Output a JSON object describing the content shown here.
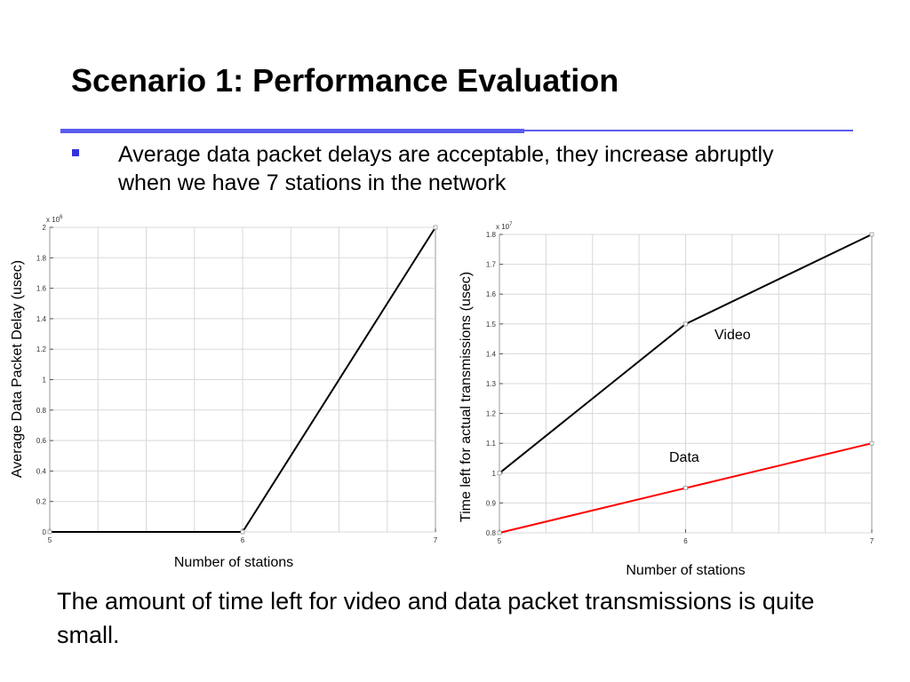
{
  "slide": {
    "title": "Scenario 1: Performance Evaluation",
    "bullet": "Average data packet delays are acceptable, they increase abruptly when we have 7 stations in the network",
    "footer": "The amount of time left for video and data packet transmissions is quite small.",
    "accent_color": "#5c5cf0",
    "bullet_color": "#3333dd"
  },
  "chart_data": [
    {
      "type": "line",
      "title": "",
      "xlabel": "Number of stations",
      "ylabel": "Average Data Packet Delay (usec)",
      "y_multiplier": "x 10",
      "y_exponent": "6",
      "xlim": [
        5,
        7
      ],
      "ylim": [
        0,
        2
      ],
      "xticks": [
        5,
        6,
        7
      ],
      "xtick_labels": [
        "5",
        "6",
        "7"
      ],
      "yticks": [
        0,
        0.2,
        0.4,
        0.6,
        0.8,
        1,
        1.2,
        1.4,
        1.6,
        1.8,
        2
      ],
      "ytick_labels": [
        "0",
        "0.2",
        "0.4",
        "0.6",
        "0.8",
        "1",
        "1.2",
        "1.4",
        "1.6",
        "1.8",
        "2"
      ],
      "grid": true,
      "series": [
        {
          "x": [
            5,
            6,
            7
          ],
          "values": [
            0,
            0,
            2
          ],
          "color": "#000000"
        }
      ]
    },
    {
      "type": "line",
      "title": "",
      "xlabel": "Number of stations",
      "ylabel": "Time left for actual transmissions (usec)",
      "y_multiplier": "x 10",
      "y_exponent": "7",
      "xlim": [
        5,
        7
      ],
      "ylim": [
        0.8,
        1.8
      ],
      "xticks": [
        5,
        6,
        7
      ],
      "xtick_labels": [
        "5",
        "6",
        "7"
      ],
      "yticks": [
        0.8,
        0.9,
        1,
        1.1,
        1.2,
        1.3,
        1.4,
        1.5,
        1.6,
        1.7,
        1.8
      ],
      "ytick_labels": [
        "0.8",
        "0.9",
        "1",
        "1.1",
        "1.2",
        "1.3",
        "1.4",
        "1.5",
        "1.6",
        "1.7",
        "1.8"
      ],
      "grid": true,
      "series": [
        {
          "name": "Video",
          "x": [
            5,
            6,
            7
          ],
          "values": [
            1.0,
            1.5,
            1.8
          ],
          "color": "#000000"
        },
        {
          "name": "Data",
          "x": [
            5,
            6,
            7
          ],
          "values": [
            0.8,
            0.95,
            1.1
          ],
          "color": "#ff0000"
        }
      ]
    }
  ]
}
